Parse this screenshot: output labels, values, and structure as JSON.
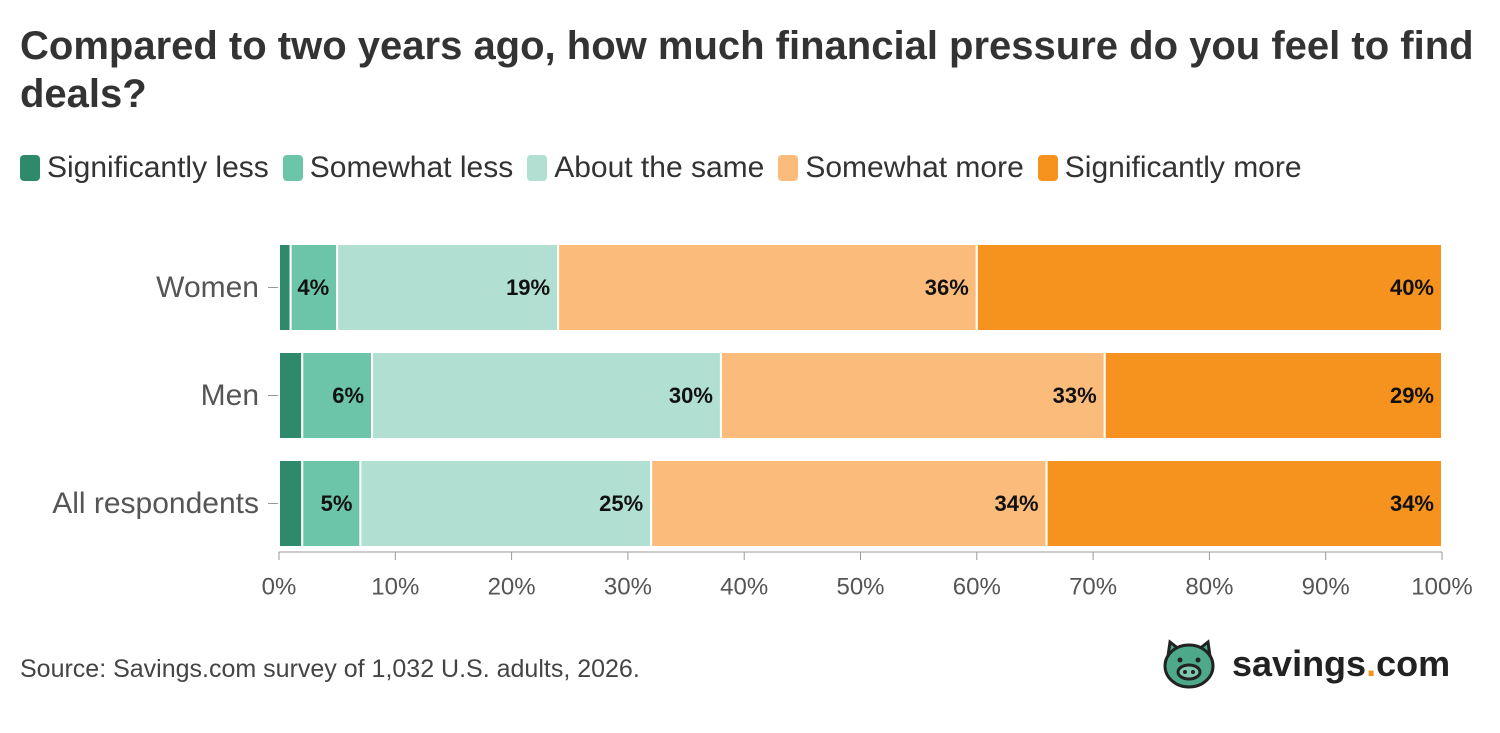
{
  "chart_data": {
    "type": "bar",
    "orientation": "horizontal",
    "stacked": true,
    "title": "Compared to two years ago, how much financial pressure do you feel to find deals?",
    "categories": [
      "Women",
      "Men",
      "All respondents"
    ],
    "series": [
      {
        "name": "Significantly less",
        "color": "#2f8a6b",
        "values": [
          1,
          2,
          2
        ],
        "labels": [
          "",
          "",
          ""
        ]
      },
      {
        "name": "Somewhat less",
        "color": "#6cc5a8",
        "values": [
          4,
          6,
          5
        ],
        "labels": [
          "4%",
          "6%",
          "5%"
        ]
      },
      {
        "name": "About the same",
        "color": "#b1dfd1",
        "values": [
          19,
          30,
          25
        ],
        "labels": [
          "19%",
          "30%",
          "25%"
        ]
      },
      {
        "name": "Somewhat more",
        "color": "#fbbb7b",
        "values": [
          36,
          33,
          34
        ],
        "labels": [
          "36%",
          "33%",
          "34%"
        ]
      },
      {
        "name": "Significantly more",
        "color": "#f6931f",
        "values": [
          40,
          29,
          34
        ],
        "labels": [
          "40%",
          "29%",
          "34%"
        ]
      }
    ],
    "xlim": [
      0,
      100
    ],
    "xticks": [
      "0%",
      "10%",
      "20%",
      "30%",
      "40%",
      "50%",
      "60%",
      "70%",
      "80%",
      "90%",
      "100%"
    ],
    "legend_position": "top",
    "grid": false
  },
  "source": "Source: Savings.com survey of 1,032 U.S. adults, 2026.",
  "brand": {
    "name": "savings",
    "dot": ".",
    "tld": "com",
    "icon": "pig-icon",
    "icon_color": "#4ea98b"
  }
}
